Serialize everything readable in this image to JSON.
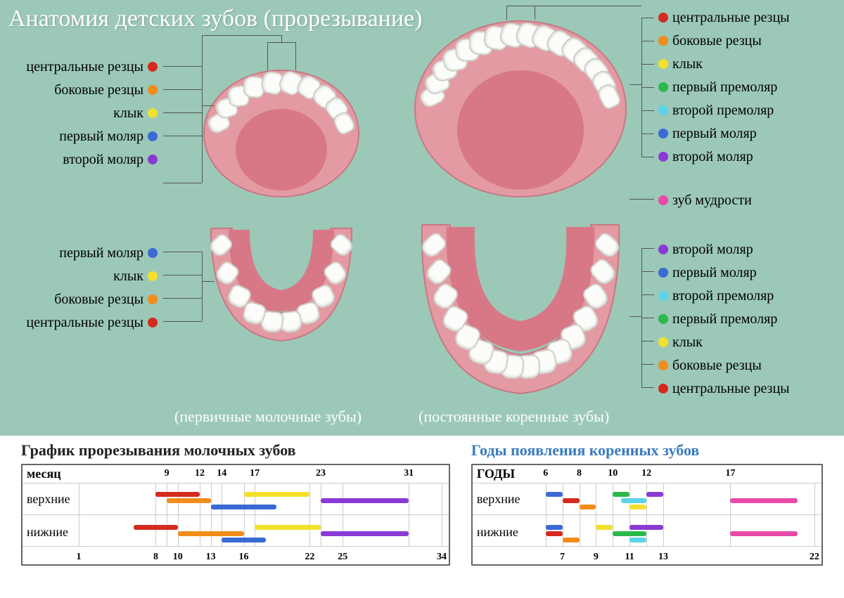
{
  "title": "Анатомия детских зубов (прорезывание)",
  "captions": {
    "primary": "(первичные молочные зубы)",
    "permanent": "(постоянные коренные зубы)"
  },
  "colors": {
    "central_incisor": "#d42a1f",
    "lateral_incisor": "#f28c1b",
    "canine": "#f2e02c",
    "first_premolar": "#2cb84a",
    "second_premolar": "#5ad4e8",
    "first_molar": "#3a6ad4",
    "second_molar": "#8a3ad4",
    "wisdom": "#e84aa8",
    "bg": "#9cc8b8",
    "gum": "#e49aa3",
    "gum_inner": "#d87886"
  },
  "primary_labels": [
    {
      "text": "центральные резцы",
      "color": "central_incisor"
    },
    {
      "text": "боковые резцы",
      "color": "lateral_incisor"
    },
    {
      "text": "клык",
      "color": "canine"
    },
    {
      "text": "первый моляр",
      "color": "first_molar"
    },
    {
      "text": "второй моляр",
      "color": "second_molar"
    }
  ],
  "primary_labels_lower": [
    {
      "text": "первый моляр",
      "color": "first_molar"
    },
    {
      "text": "клык",
      "color": "canine"
    },
    {
      "text": "боковые резцы",
      "color": "lateral_incisor"
    },
    {
      "text": "центральные резцы",
      "color": "central_incisor"
    }
  ],
  "permanent_labels_upper": [
    {
      "text": "центральные резцы",
      "color": "central_incisor"
    },
    {
      "text": "боковые резцы",
      "color": "lateral_incisor"
    },
    {
      "text": "клык",
      "color": "canine"
    },
    {
      "text": "первый премоляр",
      "color": "first_premolar"
    },
    {
      "text": "второй премоляр",
      "color": "second_premolar"
    },
    {
      "text": "первый моляр",
      "color": "first_molar"
    },
    {
      "text": "второй моляр",
      "color": "second_molar"
    }
  ],
  "permanent_wisdom": {
    "text": "зуб мудрости",
    "color": "wisdom"
  },
  "permanent_labels_lower": [
    {
      "text": "второй моляр",
      "color": "second_molar"
    },
    {
      "text": "первый моляр",
      "color": "first_molar"
    },
    {
      "text": "второй премоляр",
      "color": "second_premolar"
    },
    {
      "text": "первый премоляр",
      "color": "first_premolar"
    },
    {
      "text": "клык",
      "color": "canine"
    },
    {
      "text": "боковые резцы",
      "color": "lateral_incisor"
    },
    {
      "text": "центральные резцы",
      "color": "central_incisor"
    }
  ],
  "chart1": {
    "title": "График прорезывания молочных зубов",
    "title_color": "#222",
    "xlabel": "месяц",
    "row_labels": [
      "верхние",
      "нижние"
    ],
    "ticks_top": [
      9,
      12,
      14,
      17,
      23,
      31
    ],
    "ticks_bottom": [
      1,
      8,
      10,
      13,
      16,
      22,
      25,
      34
    ],
    "xmin": 1,
    "xmax": 34,
    "bars_upper": [
      {
        "start": 8,
        "end": 12,
        "color": "central_incisor"
      },
      {
        "start": 9,
        "end": 13,
        "color": "lateral_incisor"
      },
      {
        "start": 13,
        "end": 19,
        "color": "first_molar"
      },
      {
        "start": 16,
        "end": 22,
        "color": "canine"
      },
      {
        "start": 23,
        "end": 31,
        "color": "second_molar"
      }
    ],
    "bars_lower": [
      {
        "start": 6,
        "end": 10,
        "color": "central_incisor"
      },
      {
        "start": 10,
        "end": 16,
        "color": "lateral_incisor"
      },
      {
        "start": 14,
        "end": 18,
        "color": "first_molar"
      },
      {
        "start": 17,
        "end": 23,
        "color": "canine"
      },
      {
        "start": 23,
        "end": 31,
        "color": "second_molar"
      }
    ]
  },
  "chart2": {
    "title": "Годы появления коренных зубов",
    "title_color": "#3a7bbf",
    "xlabel": "ГОДЫ",
    "row_labels": [
      "верхние",
      "нижние"
    ],
    "ticks_top": [
      6,
      8,
      10,
      12,
      17
    ],
    "ticks_bottom": [
      7,
      9,
      11,
      13,
      22
    ],
    "xmin": 5,
    "xmax": 22,
    "bars_upper": [
      {
        "start": 6,
        "end": 7,
        "color": "first_molar"
      },
      {
        "start": 7,
        "end": 8,
        "color": "central_incisor"
      },
      {
        "start": 8,
        "end": 9,
        "color": "lateral_incisor"
      },
      {
        "start": 10,
        "end": 11,
        "color": "first_premolar"
      },
      {
        "start": 10.5,
        "end": 12,
        "color": "second_premolar"
      },
      {
        "start": 11,
        "end": 12,
        "color": "canine"
      },
      {
        "start": 12,
        "end": 13,
        "color": "second_molar"
      },
      {
        "start": 17,
        "end": 21,
        "color": "wisdom"
      }
    ],
    "bars_lower": [
      {
        "start": 6,
        "end": 7,
        "color": "first_molar"
      },
      {
        "start": 6,
        "end": 7,
        "color": "central_incisor"
      },
      {
        "start": 7,
        "end": 8,
        "color": "lateral_incisor"
      },
      {
        "start": 9,
        "end": 10,
        "color": "canine"
      },
      {
        "start": 10,
        "end": 12,
        "color": "first_premolar"
      },
      {
        "start": 11,
        "end": 12,
        "color": "second_premolar"
      },
      {
        "start": 11,
        "end": 13,
        "color": "second_molar"
      },
      {
        "start": 17,
        "end": 21,
        "color": "wisdom"
      }
    ]
  }
}
